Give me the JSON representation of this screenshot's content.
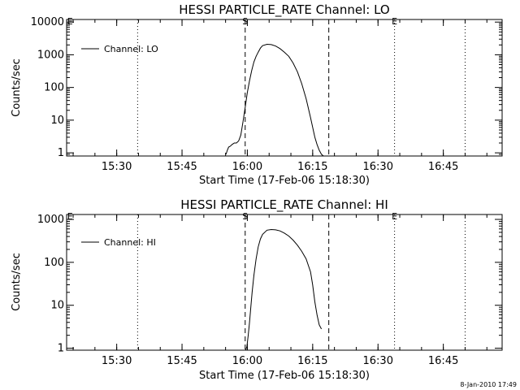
{
  "footer_stamp": "8-Jan-2010 17:49",
  "chart_data": [
    {
      "type": "line",
      "title": "HESSI PARTICLE_RATE Channel: LO",
      "xlabel": "Start Time (17-Feb-06 15:18:30)",
      "ylabel": "Counts/sec",
      "x_unit": "minutes since 15:18:30",
      "xlim": [
        0,
        100
      ],
      "ylim": [
        0.8,
        12000
      ],
      "y_scale": "log",
      "y_ticks": [
        1,
        10,
        100,
        1000,
        10000
      ],
      "y_tick_labels": [
        "1",
        "10",
        "100",
        "1000",
        "10000"
      ],
      "x_ticks": [
        11.5,
        26.5,
        41.5,
        56.5,
        71.5,
        86.5
      ],
      "x_tick_labels": [
        "15:30",
        "15:45",
        "16:00",
        "16:15",
        "16:30",
        "16:45"
      ],
      "legend": "Channel: LO",
      "legend_position": "top-left",
      "markers": [
        {
          "label": "E",
          "x": 0.8,
          "style": "none"
        },
        {
          "label": "",
          "x": 16.3,
          "style": "dotted"
        },
        {
          "label": "S",
          "x": 41.0,
          "style": "dashed"
        },
        {
          "label": "",
          "x": 60.2,
          "style": "dashed"
        },
        {
          "label": "E",
          "x": 75.3,
          "style": "dotted"
        },
        {
          "label": "",
          "x": 91.5,
          "style": "dotted"
        }
      ],
      "series": [
        {
          "name": "Channel: LO",
          "color": "#000000",
          "x": [
            36.6,
            36.9,
            37.2,
            37.6,
            38.0,
            38.5,
            39.0,
            39.5,
            40.0,
            40.5,
            41.0,
            41.5,
            42.0,
            42.5,
            43.0,
            43.5,
            44.0,
            44.5,
            45.0,
            46.0,
            47.0,
            48.0,
            49.0,
            50.0,
            51.0,
            52.0,
            53.0,
            54.0,
            55.0,
            56.0,
            57.0,
            57.5,
            58.0,
            58.5,
            59.0
          ],
          "y": [
            0.9,
            1.2,
            1.5,
            1.6,
            1.8,
            2.0,
            2.0,
            2.3,
            3.5,
            9,
            25,
            70,
            160,
            330,
            600,
            900,
            1200,
            1600,
            1900,
            2100,
            2050,
            1850,
            1550,
            1200,
            900,
            560,
            300,
            130,
            45,
            12,
            3,
            1.8,
            1.2,
            0.9,
            0.8
          ]
        }
      ]
    },
    {
      "type": "line",
      "title": "HESSI PARTICLE_RATE Channel: HI",
      "xlabel": "Start Time (17-Feb-06 15:18:30)",
      "ylabel": "Counts/sec",
      "x_unit": "minutes since 15:18:30",
      "xlim": [
        0,
        100
      ],
      "ylim": [
        0.9,
        1300
      ],
      "y_scale": "log",
      "y_ticks": [
        1,
        10,
        100,
        1000
      ],
      "y_tick_labels": [
        "1",
        "10",
        "100",
        "1000"
      ],
      "x_ticks": [
        11.5,
        26.5,
        41.5,
        56.5,
        71.5,
        86.5
      ],
      "x_tick_labels": [
        "15:30",
        "15:45",
        "16:00",
        "16:15",
        "16:30",
        "16:45"
      ],
      "legend": "Channel: HI",
      "legend_position": "top-left",
      "markers": [
        {
          "label": "E",
          "x": 0.8,
          "style": "none"
        },
        {
          "label": "",
          "x": 16.3,
          "style": "dotted"
        },
        {
          "label": "S",
          "x": 41.0,
          "style": "dashed"
        },
        {
          "label": "",
          "x": 60.2,
          "style": "dashed"
        },
        {
          "label": "E",
          "x": 75.3,
          "style": "dotted"
        },
        {
          "label": "",
          "x": 91.5,
          "style": "dotted"
        }
      ],
      "series": [
        {
          "name": "Channel: HI",
          "color": "#000000",
          "x": [
            41.1,
            41.4,
            41.7,
            42.0,
            42.3,
            42.6,
            43.0,
            43.5,
            44.0,
            44.5,
            45.0,
            46.0,
            47.0,
            48.0,
            49.0,
            50.0,
            51.0,
            52.0,
            53.0,
            54.0,
            55.0,
            56.0,
            56.5,
            57.0,
            57.5,
            58.0,
            58.5
          ],
          "y": [
            0.9,
            1.1,
            2,
            4,
            9,
            20,
            50,
            120,
            230,
            350,
            450,
            560,
            580,
            570,
            540,
            480,
            410,
            330,
            250,
            180,
            120,
            60,
            30,
            12,
            6,
            3.5,
            2.8
          ]
        }
      ]
    }
  ]
}
